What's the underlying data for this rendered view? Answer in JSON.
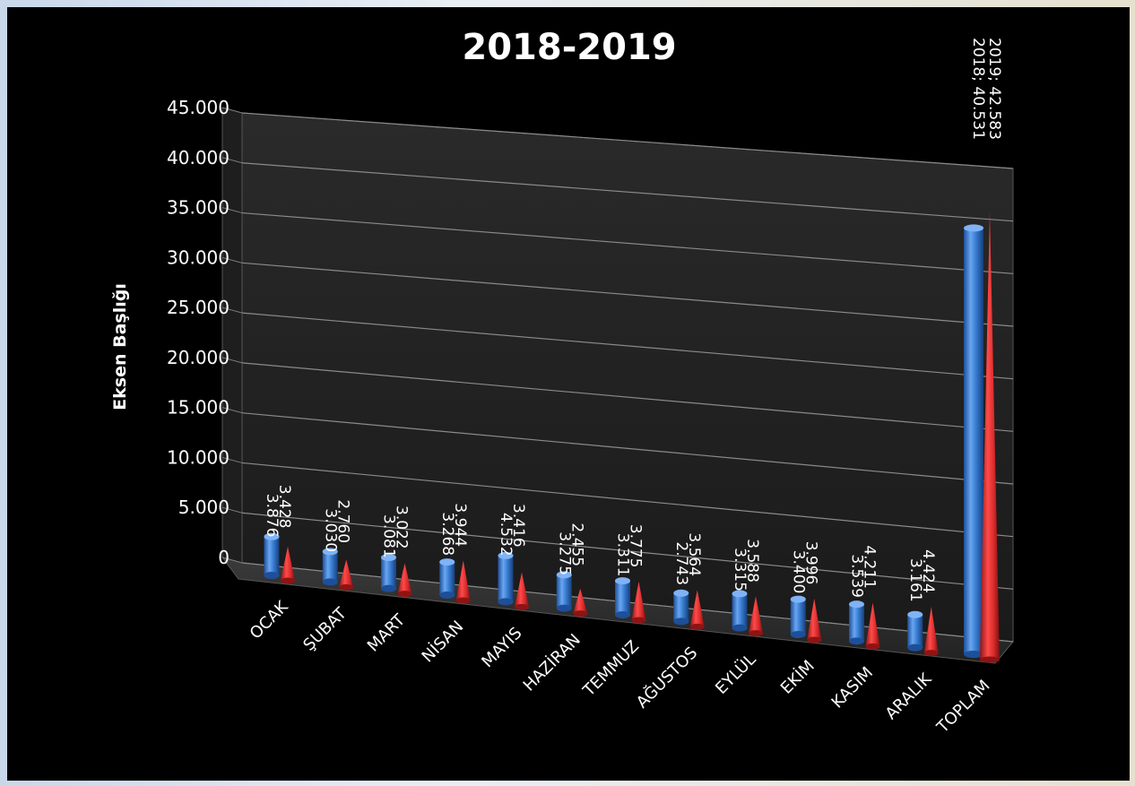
{
  "chart_data": {
    "type": "bar",
    "title": "2018-2019",
    "xlabel": "",
    "ylabel": "Eksen Başlığı",
    "ylim": [
      0,
      45000
    ],
    "yticks": [
      "0",
      "5.000",
      "10.000",
      "15.000",
      "20.000",
      "25.000",
      "30.000",
      "35.000",
      "40.000",
      "45.000"
    ],
    "categories": [
      "OCAK",
      "ŞUBAT",
      "MART",
      "NİSAN",
      "MAYIS",
      "HAZİRAN",
      "TEMMUZ",
      "AĞUSTOS",
      "EYLÜL",
      "EKİM",
      "KASIM",
      "ARALIK",
      "TOPLAM"
    ],
    "series": [
      {
        "name": "2018",
        "color": "#3a7fd5",
        "shape": "cylinder",
        "values": [
          3876,
          3030,
          3081,
          3268,
          4532,
          3275,
          3311,
          2743,
          3315,
          3400,
          3539,
          3161,
          40531
        ],
        "labels": [
          "3.876",
          "3.030",
          "3.081",
          "3.268",
          "4.532",
          "3.275",
          "3.311",
          "2.743",
          "3.315",
          "3.400",
          "3.539",
          "3.161",
          "2018; 40.531"
        ]
      },
      {
        "name": "2019",
        "color": "#d92b2b",
        "shape": "cone",
        "values": [
          3428,
          2760,
          3022,
          3944,
          3416,
          2455,
          3775,
          3564,
          3588,
          3996,
          4211,
          4424,
          42583
        ],
        "labels": [
          "3.428",
          "2.760",
          "3.022",
          "3.944",
          "3.416",
          "2.455",
          "3.775",
          "3.564",
          "3.588",
          "3.996",
          "4.211",
          "4.424",
          "2019; 42.583"
        ]
      }
    ],
    "grid": true,
    "legend": "none"
  }
}
